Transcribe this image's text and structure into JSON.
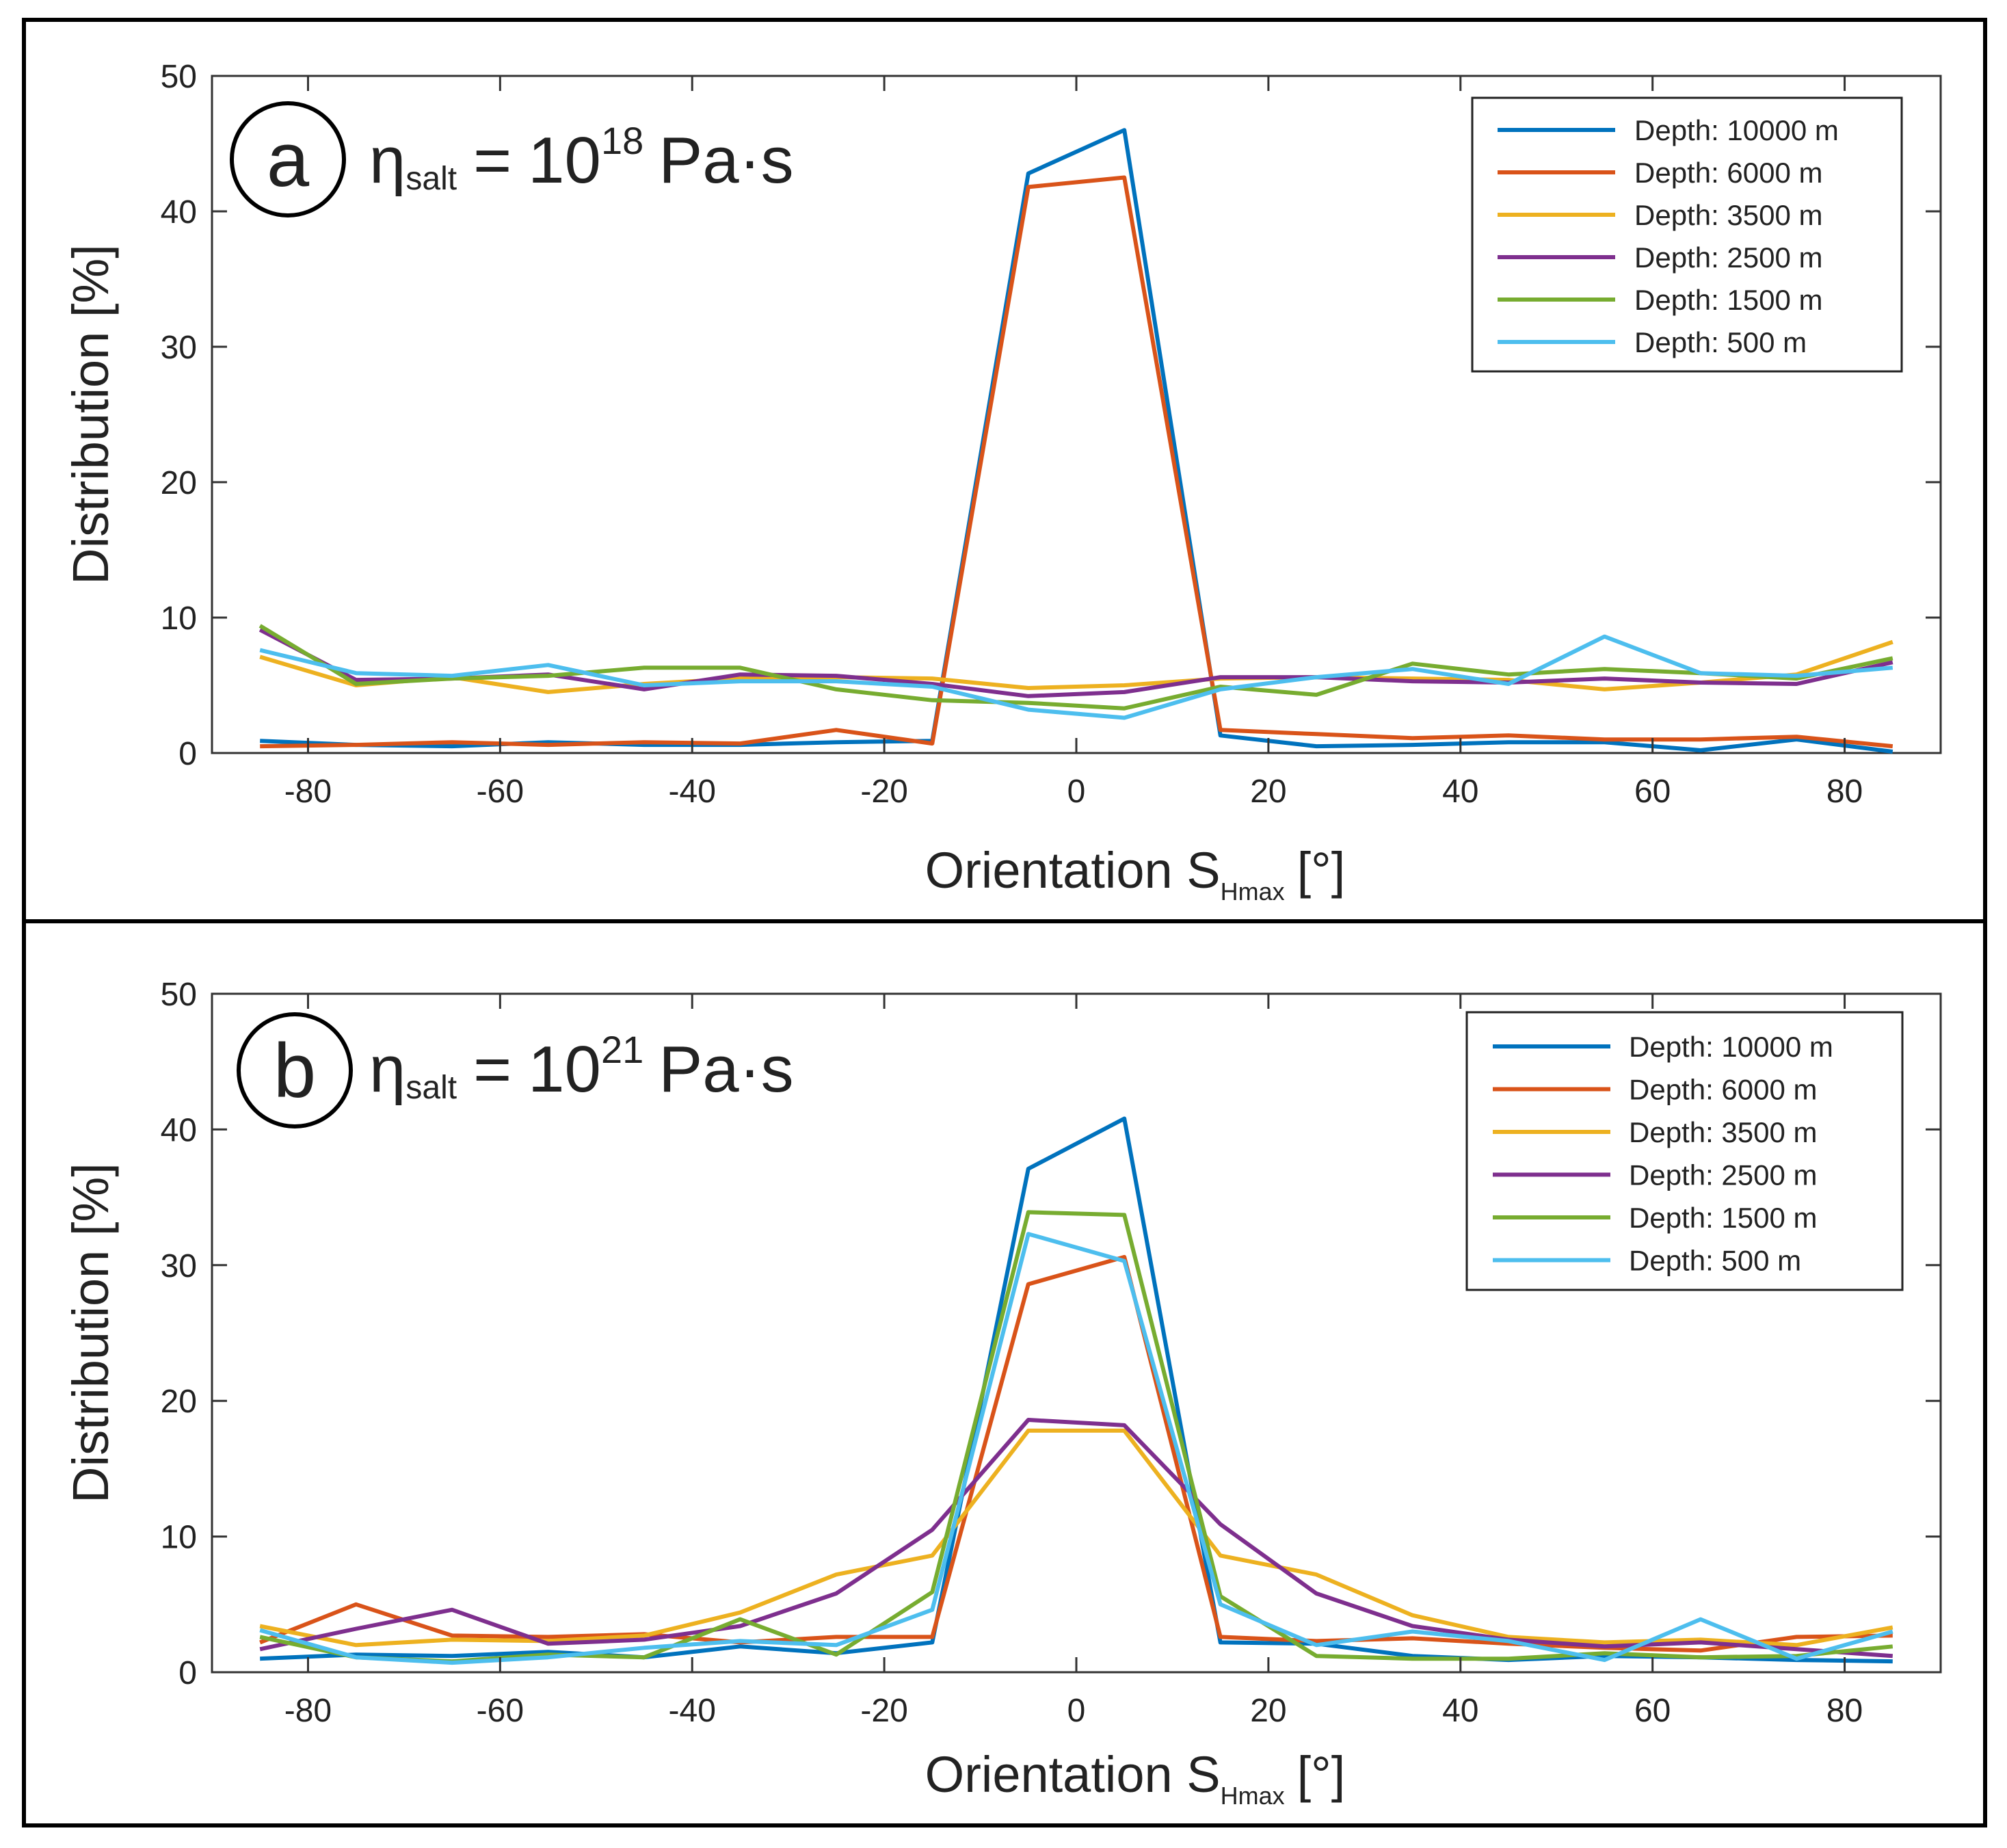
{
  "chart_data": [
    {
      "type": "line",
      "panel_label": "a",
      "eta_symbol": "η",
      "eta_subscript": "salt",
      "eta_equals": "=",
      "eta_base": "10",
      "eta_exponent": "18",
      "eta_unit": "Pa·s",
      "xlabel": "Orientation S",
      "xlabel_subscript": "Hmax",
      "xlabel_unit": "[°]",
      "ylabel": "Distribution [%]",
      "xlim": [
        -90,
        90
      ],
      "ylim": [
        0,
        50
      ],
      "xticks": [
        -80,
        -60,
        -40,
        -20,
        0,
        20,
        40,
        60,
        80
      ],
      "xtick_labels": [
        "-80",
        "-60",
        "-40",
        "-20",
        "0",
        "20",
        "40",
        "60",
        "80"
      ],
      "yticks": [
        0,
        10,
        20,
        30,
        40,
        50
      ],
      "ytick_labels": [
        "0",
        "10",
        "20",
        "30",
        "40",
        "50"
      ],
      "grid": false,
      "legend_position": "top-right",
      "x": [
        -85,
        -75,
        -65,
        -55,
        -45,
        -35,
        -25,
        -15,
        -5,
        5,
        15,
        25,
        35,
        45,
        55,
        65,
        75,
        85
      ],
      "series": [
        {
          "name": "Depth: 10000 m",
          "color": "#0072BD",
          "values": [
            0.9,
            0.6,
            0.5,
            0.8,
            0.6,
            0.6,
            0.8,
            0.9,
            42.8,
            46.0,
            1.3,
            0.5,
            0.6,
            0.8,
            0.8,
            0.2,
            1.0,
            0.1
          ]
        },
        {
          "name": "Depth: 6000 m",
          "color": "#D95319",
          "values": [
            0.5,
            0.6,
            0.8,
            0.6,
            0.8,
            0.7,
            1.7,
            0.7,
            41.8,
            42.5,
            1.7,
            1.4,
            1.1,
            1.3,
            1.0,
            1.0,
            1.2,
            0.5
          ]
        },
        {
          "name": "Depth: 3500 m",
          "color": "#EDB120",
          "values": [
            7.1,
            5.0,
            5.6,
            4.5,
            5.1,
            5.5,
            5.6,
            5.5,
            4.8,
            5.0,
            5.5,
            5.6,
            5.5,
            5.4,
            4.7,
            5.2,
            5.8,
            8.2
          ]
        },
        {
          "name": "Depth: 2500 m",
          "color": "#7E2F8E",
          "values": [
            9.1,
            5.4,
            5.5,
            5.8,
            4.7,
            5.8,
            5.7,
            5.1,
            4.2,
            4.5,
            5.6,
            5.6,
            5.3,
            5.2,
            5.5,
            5.2,
            5.1,
            6.7
          ]
        },
        {
          "name": "Depth: 1500 m",
          "color": "#77AC30",
          "values": [
            9.4,
            5.1,
            5.5,
            5.7,
            6.3,
            6.3,
            4.7,
            3.9,
            3.7,
            3.3,
            4.9,
            4.3,
            6.6,
            5.8,
            6.2,
            5.9,
            5.5,
            7.0
          ]
        },
        {
          "name": "Depth: 500 m",
          "color": "#4DBEEE",
          "values": [
            7.6,
            5.9,
            5.7,
            6.5,
            5.0,
            5.3,
            5.3,
            4.9,
            3.2,
            2.6,
            4.7,
            5.6,
            6.2,
            5.1,
            8.6,
            5.9,
            5.7,
            6.3
          ]
        }
      ]
    },
    {
      "type": "line",
      "panel_label": "b",
      "eta_symbol": "η",
      "eta_subscript": "salt",
      "eta_equals": "=",
      "eta_base": "10",
      "eta_exponent": "21",
      "eta_unit": "Pa·s",
      "xlabel": "Orientation S",
      "xlabel_subscript": "Hmax",
      "xlabel_unit": "[°]",
      "ylabel": "Distribution [%]",
      "xlim": [
        -90,
        90
      ],
      "ylim": [
        0,
        50
      ],
      "xticks": [
        -80,
        -60,
        -40,
        -20,
        0,
        20,
        40,
        60,
        80
      ],
      "xtick_labels": [
        "-80",
        "-60",
        "-40",
        "-20",
        "0",
        "20",
        "40",
        "60",
        "80"
      ],
      "yticks": [
        0,
        10,
        20,
        30,
        40,
        50
      ],
      "ytick_labels": [
        "0",
        "10",
        "20",
        "30",
        "40",
        "50"
      ],
      "grid": false,
      "legend_position": "top-right",
      "x": [
        -85,
        -75,
        -65,
        -55,
        -45,
        -35,
        -25,
        -15,
        -5,
        5,
        15,
        25,
        35,
        45,
        55,
        65,
        75,
        85
      ],
      "series": [
        {
          "name": "Depth: 10000 m",
          "color": "#0072BD",
          "values": [
            1.0,
            1.3,
            1.2,
            1.5,
            1.1,
            1.9,
            1.4,
            2.2,
            37.1,
            40.8,
            2.2,
            2.1,
            1.2,
            0.9,
            1.2,
            1.1,
            0.9,
            0.8
          ]
        },
        {
          "name": "Depth: 6000 m",
          "color": "#D95319",
          "values": [
            2.2,
            5.0,
            2.7,
            2.6,
            2.8,
            2.2,
            2.6,
            2.6,
            28.6,
            30.6,
            2.6,
            2.3,
            2.5,
            2.1,
            1.8,
            1.6,
            2.6,
            2.7
          ]
        },
        {
          "name": "Depth: 3500 m",
          "color": "#EDB120",
          "values": [
            3.4,
            2.0,
            2.4,
            2.3,
            2.7,
            4.4,
            7.2,
            8.6,
            17.8,
            17.8,
            8.6,
            7.2,
            4.2,
            2.6,
            2.2,
            2.4,
            2.0,
            3.3
          ]
        },
        {
          "name": "Depth: 2500 m",
          "color": "#7E2F8E",
          "values": [
            1.7,
            3.2,
            4.6,
            2.1,
            2.4,
            3.4,
            5.8,
            10.5,
            18.6,
            18.2,
            10.9,
            5.8,
            3.4,
            2.4,
            1.9,
            2.2,
            1.7,
            1.2
          ]
        },
        {
          "name": "Depth: 1500 m",
          "color": "#77AC30",
          "values": [
            2.6,
            1.1,
            0.8,
            1.3,
            1.1,
            3.9,
            1.3,
            5.9,
            33.9,
            33.7,
            5.6,
            1.2,
            1.0,
            1.0,
            1.4,
            1.1,
            1.2,
            1.9
          ]
        },
        {
          "name": "Depth: 500 m",
          "color": "#4DBEEE",
          "values": [
            3.1,
            1.1,
            0.7,
            1.1,
            1.8,
            2.3,
            2.0,
            4.6,
            32.3,
            30.3,
            5.0,
            2.0,
            3.0,
            2.3,
            0.9,
            3.9,
            1.0,
            3.0
          ]
        }
      ]
    }
  ]
}
